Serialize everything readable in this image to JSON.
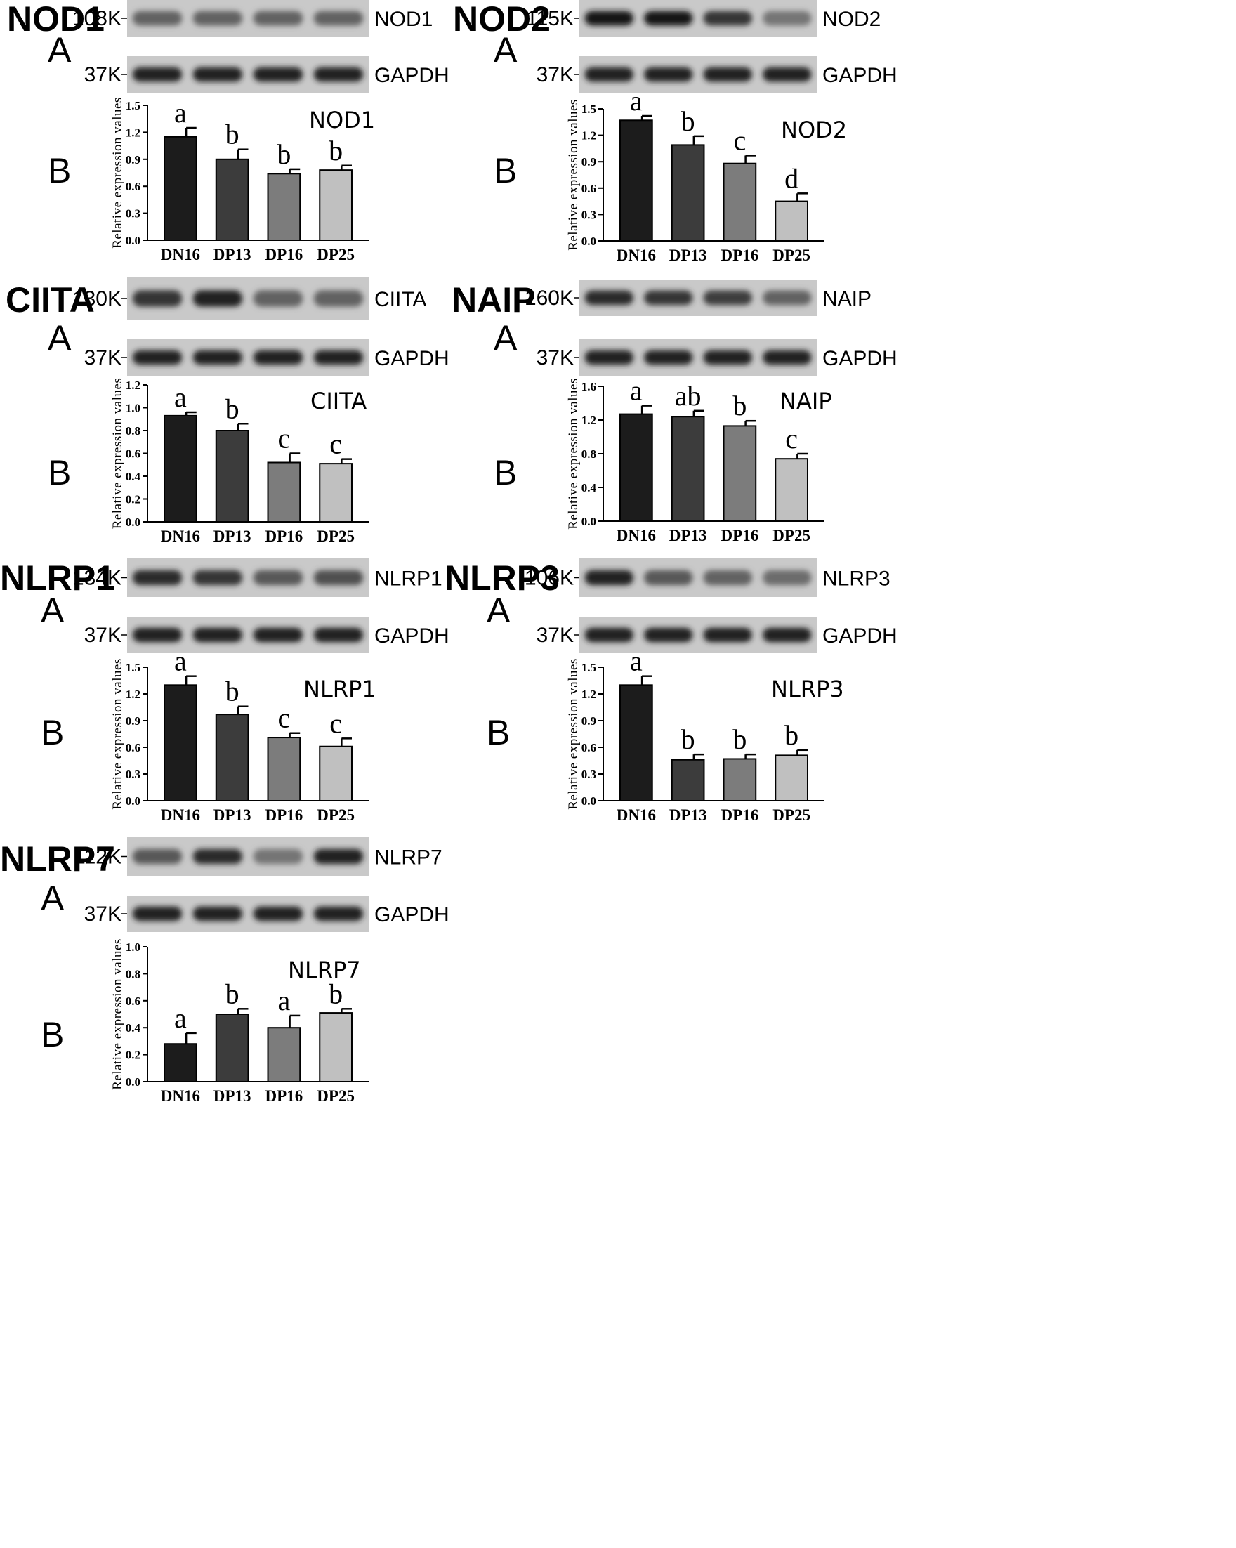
{
  "chart_data": [
    {
      "type": "bar",
      "panel": "NOD1",
      "title": "NOD1",
      "protein_mw": "108K",
      "protein_band": "NOD1",
      "gapdh_mw": "37K",
      "gapdh_band": "GAPDH",
      "label_a": "A",
      "label_b": "B",
      "ylabel": "Relative expression values",
      "categories": [
        "DN16",
        "DP13",
        "DP16",
        "DP25"
      ],
      "values": [
        1.15,
        0.9,
        0.74,
        0.78
      ],
      "errors": [
        0.1,
        0.11,
        0.05,
        0.05
      ],
      "letters": [
        "a",
        "b",
        "b",
        "b"
      ],
      "ylim": [
        0,
        1.5
      ],
      "yticks": [
        "0.0",
        "0.3",
        "0.6",
        "0.9",
        "1.2",
        "1.5"
      ],
      "band_intensity": [
        0.55,
        0.55,
        0.55,
        0.55
      ],
      "bar_colors": [
        "#1c1c1c",
        "#3c3c3c",
        "#7c7c7c",
        "#c0c0c0"
      ]
    },
    {
      "type": "bar",
      "panel": "NOD2",
      "title": "NOD2",
      "protein_mw": "115K",
      "protein_band": "NOD2",
      "gapdh_mw": "37K",
      "gapdh_band": "GAPDH",
      "label_a": "A",
      "label_b": "B",
      "ylabel": "Relative expression values",
      "categories": [
        "DN16",
        "DP13",
        "DP16",
        "DP25"
      ],
      "values": [
        1.37,
        1.09,
        0.88,
        0.45
      ],
      "errors": [
        0.05,
        0.1,
        0.09,
        0.09
      ],
      "letters": [
        "a",
        "b",
        "c",
        "d"
      ],
      "ylim": [
        0,
        1.5
      ],
      "yticks": [
        "0.0",
        "0.3",
        "0.6",
        "0.9",
        "1.2",
        "1.5"
      ],
      "band_intensity": [
        0.95,
        0.95,
        0.8,
        0.45
      ],
      "bar_colors": [
        "#1c1c1c",
        "#3c3c3c",
        "#7c7c7c",
        "#c0c0c0"
      ]
    },
    {
      "type": "bar",
      "panel": "CIITA",
      "title": "CIITA",
      "protein_mw": "130K",
      "protein_band": "CIITA",
      "gapdh_mw": "37K",
      "gapdh_band": "GAPDH",
      "label_a": "A",
      "label_b": "B",
      "ylabel": "Relative expression values",
      "categories": [
        "DN16",
        "DP13",
        "DP16",
        "DP25"
      ],
      "values": [
        0.93,
        0.8,
        0.52,
        0.51
      ],
      "errors": [
        0.03,
        0.06,
        0.08,
        0.04
      ],
      "letters": [
        "a",
        "b",
        "c",
        "c"
      ],
      "ylim": [
        0,
        1.2
      ],
      "yticks": [
        "0.0",
        "0.2",
        "0.4",
        "0.6",
        "0.8",
        "1.0",
        "1.2"
      ],
      "band_intensity": [
        0.8,
        0.9,
        0.55,
        0.55
      ],
      "bar_colors": [
        "#1c1c1c",
        "#3c3c3c",
        "#7c7c7c",
        "#c0c0c0"
      ]
    },
    {
      "type": "bar",
      "panel": "NAIP",
      "title": "NAIP",
      "protein_mw": "160K",
      "protein_band": "NAIP",
      "gapdh_mw": "37K",
      "gapdh_band": "GAPDH",
      "label_a": "A",
      "label_b": "B",
      "ylabel": "Relative expression values",
      "categories": [
        "DN16",
        "DP13",
        "DP16",
        "DP25"
      ],
      "values": [
        1.27,
        1.24,
        1.13,
        0.74
      ],
      "errors": [
        0.1,
        0.07,
        0.06,
        0.06
      ],
      "letters": [
        "a",
        "ab",
        "b",
        "c"
      ],
      "ylim": [
        0,
        1.6
      ],
      "yticks": [
        "0.0",
        "0.4",
        "0.8",
        "1.2",
        "1.6"
      ],
      "band_intensity": [
        0.85,
        0.8,
        0.75,
        0.55
      ],
      "bar_colors": [
        "#1c1c1c",
        "#3c3c3c",
        "#7c7c7c",
        "#c0c0c0"
      ]
    },
    {
      "type": "bar",
      "panel": "NLRP1",
      "title": "NLRP1",
      "protein_mw": "134K",
      "protein_band": "NLRP1",
      "gapdh_mw": "37K",
      "gapdh_band": "GAPDH",
      "label_a": "A",
      "label_b": "B",
      "ylabel": "Relative expression values",
      "categories": [
        "DN16",
        "DP13",
        "DP16",
        "DP25"
      ],
      "values": [
        1.3,
        0.97,
        0.71,
        0.61
      ],
      "errors": [
        0.1,
        0.09,
        0.05,
        0.09
      ],
      "letters": [
        "a",
        "b",
        "c",
        "c"
      ],
      "ylim": [
        0,
        1.5
      ],
      "yticks": [
        "0.0",
        "0.3",
        "0.6",
        "0.9",
        "1.2",
        "1.5"
      ],
      "band_intensity": [
        0.85,
        0.8,
        0.6,
        0.65
      ],
      "bar_colors": [
        "#1c1c1c",
        "#3c3c3c",
        "#7c7c7c",
        "#c0c0c0"
      ]
    },
    {
      "type": "bar",
      "panel": "NLRP3",
      "title": "NLRP3",
      "protein_mw": "106K",
      "protein_band": "NLRP3",
      "gapdh_mw": "37K",
      "gapdh_band": "GAPDH",
      "label_a": "A",
      "label_b": "B",
      "ylabel": "Relative expression values",
      "categories": [
        "DN16",
        "DP13",
        "DP16",
        "DP25"
      ],
      "values": [
        1.3,
        0.46,
        0.47,
        0.51
      ],
      "errors": [
        0.1,
        0.06,
        0.05,
        0.06
      ],
      "letters": [
        "a",
        "b",
        "b",
        "b"
      ],
      "ylim": [
        0,
        1.5
      ],
      "yticks": [
        "0.0",
        "0.3",
        "0.6",
        "0.9",
        "1.2",
        "1.5"
      ],
      "band_intensity": [
        0.9,
        0.6,
        0.55,
        0.5
      ],
      "bar_colors": [
        "#1c1c1c",
        "#3c3c3c",
        "#7c7c7c",
        "#c0c0c0"
      ]
    },
    {
      "type": "bar",
      "panel": "NLRP7",
      "title": "NLRP7",
      "protein_mw": "112K",
      "protein_band": "NLRP7",
      "gapdh_mw": "37K",
      "gapdh_band": "GAPDH",
      "label_a": "A",
      "label_b": "B",
      "ylabel": "Relative expression values",
      "categories": [
        "DN16",
        "DP13",
        "DP16",
        "DP25"
      ],
      "values": [
        0.28,
        0.5,
        0.4,
        0.51
      ],
      "errors": [
        0.08,
        0.04,
        0.09,
        0.03
      ],
      "letters": [
        "a",
        "b",
        "a",
        "b"
      ],
      "ylim": [
        0,
        1.0
      ],
      "yticks": [
        "0.0",
        "0.2",
        "0.4",
        "0.6",
        "0.8",
        "1.0"
      ],
      "band_intensity": [
        0.6,
        0.85,
        0.45,
        0.9
      ],
      "bar_colors": [
        "#1c1c1c",
        "#3c3c3c",
        "#7c7c7c",
        "#c0c0c0"
      ]
    }
  ]
}
